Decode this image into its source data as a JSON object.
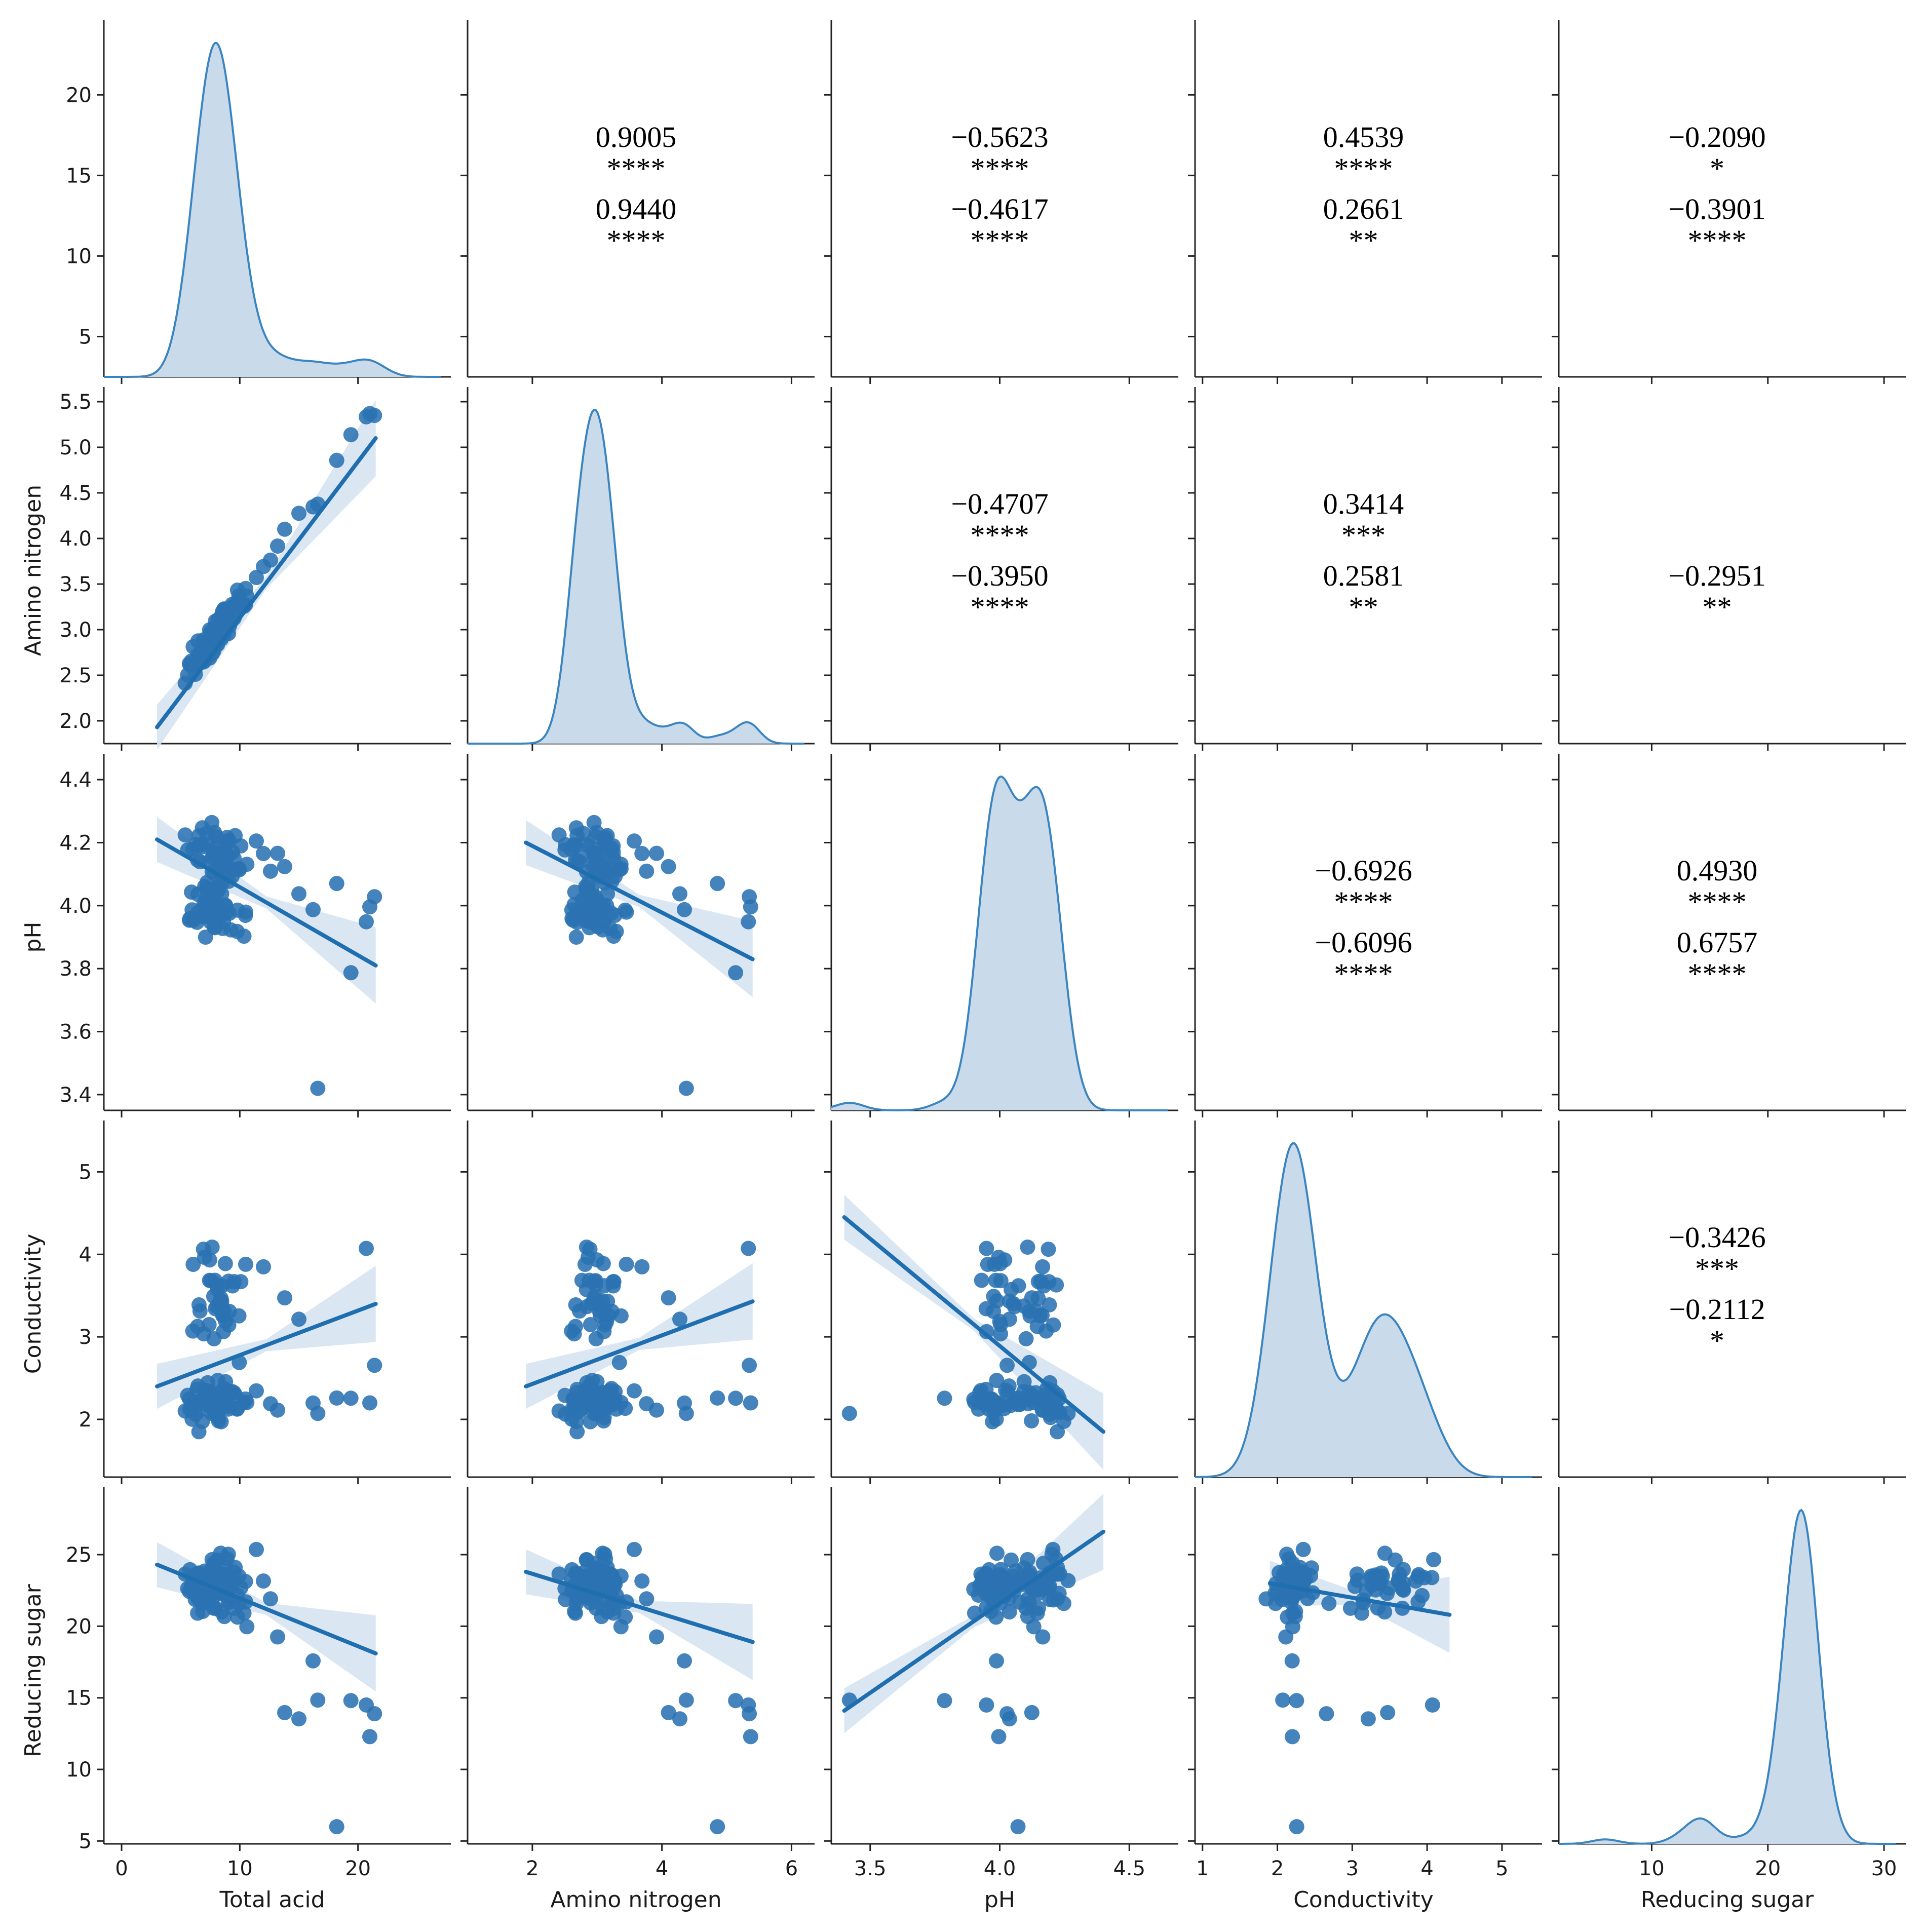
{
  "chart_data": {
    "type": "pairplot",
    "variables": [
      "Total acid",
      "Amino nitrogen",
      "pH",
      "Conductivity",
      "Reducing sugar"
    ],
    "axes": {
      "Total acid": {
        "range": [
          -1.5,
          27
        ],
        "ticks": [
          0,
          10,
          20
        ],
        "tick_labels": [
          "0",
          "10",
          "20"
        ]
      },
      "Amino nitrogen": {
        "range": [
          1.75,
          5.55
        ],
        "ticks": [
          2.0,
          2.5,
          3.0,
          3.5,
          4.0,
          4.5,
          5.0,
          5.5
        ],
        "tick_labels": [
          "2.0",
          "2.5",
          "3.0",
          "3.5",
          "4.0",
          "4.5",
          "5.0",
          "5.5"
        ],
        "x_ticks": [
          2,
          4,
          6
        ],
        "x_tick_labels": [
          "2",
          "4",
          "6"
        ],
        "x_range": [
          1.0,
          6.2
        ]
      },
      "pH": {
        "range": [
          3.35,
          4.45
        ],
        "ticks": [
          3.4,
          3.6,
          3.8,
          4.0,
          4.2,
          4.4
        ],
        "tick_labels": [
          "3.4",
          "3.6",
          "3.8",
          "4.0",
          "4.2",
          "4.4"
        ],
        "x_ticks": [
          3.5,
          4.0,
          4.5
        ],
        "x_tick_labels": [
          "3.5",
          "4.0",
          "4.5"
        ],
        "x_range": [
          3.35,
          4.65
        ]
      },
      "Conductivity": {
        "range": [
          1.3,
          5.5
        ],
        "ticks": [
          2,
          3,
          4,
          5
        ],
        "tick_labels": [
          "2",
          "3",
          "4",
          "5"
        ],
        "x_ticks": [
          1,
          2,
          3,
          4,
          5
        ],
        "x_tick_labels": [
          "1",
          "2",
          "3",
          "4",
          "5"
        ],
        "x_range": [
          0.9,
          5.4
        ]
      },
      "Reducing sugar": {
        "range": [
          4.8,
          29
        ],
        "ticks": [
          5,
          10,
          15,
          20,
          25
        ],
        "tick_labels": [
          "5",
          "10",
          "15",
          "20",
          "25"
        ],
        "x_ticks": [
          10,
          20,
          30
        ],
        "x_tick_labels": [
          "10",
          "20",
          "30"
        ],
        "x_range": [
          2,
          31
        ]
      }
    },
    "diag_y_axis": {
      "ticks": [
        5,
        10,
        15,
        20
      ],
      "tick_labels": [
        "5",
        "10",
        "15",
        "20"
      ],
      "range": [
        2.5,
        24
      ]
    },
    "regression_lines": [
      {
        "x_var": "Total acid",
        "y_var": "Amino nitrogen",
        "x": [
          3,
          21.5
        ],
        "y": [
          1.93,
          5.1
        ]
      },
      {
        "x_var": "Total acid",
        "y_var": "pH",
        "x": [
          3,
          21.5
        ],
        "y": [
          4.21,
          3.81
        ]
      },
      {
        "x_var": "Amino nitrogen",
        "y_var": "pH",
        "x": [
          1.9,
          5.4
        ],
        "y": [
          4.2,
          3.83
        ]
      },
      {
        "x_var": "Total acid",
        "y_var": "Conductivity",
        "x": [
          3,
          21.5
        ],
        "y": [
          2.4,
          3.4
        ]
      },
      {
        "x_var": "Amino nitrogen",
        "y_var": "Conductivity",
        "x": [
          1.9,
          5.4
        ],
        "y": [
          2.4,
          3.43
        ]
      },
      {
        "x_var": "pH",
        "y_var": "Conductivity",
        "x": [
          3.4,
          4.4
        ],
        "y": [
          4.45,
          1.85
        ]
      },
      {
        "x_var": "Total acid",
        "y_var": "Reducing sugar",
        "x": [
          3,
          21.5
        ],
        "y": [
          24.3,
          18.1
        ]
      },
      {
        "x_var": "Amino nitrogen",
        "y_var": "Reducing sugar",
        "x": [
          1.9,
          5.4
        ],
        "y": [
          23.8,
          18.9
        ]
      },
      {
        "x_var": "pH",
        "y_var": "Reducing sugar",
        "x": [
          3.4,
          4.4
        ],
        "y": [
          14.1,
          26.6
        ]
      },
      {
        "x_var": "Conductivity",
        "y_var": "Reducing sugar",
        "x": [
          1.9,
          4.3
        ],
        "y": [
          23.0,
          20.8
        ]
      }
    ],
    "kde_peaks": [
      {
        "variable": "Total acid",
        "peak_x": 8.3
      },
      {
        "variable": "Amino nitrogen",
        "peak_x": 2.8
      },
      {
        "variable": "pH",
        "peak_x": [
          4.0,
          4.15
        ]
      },
      {
        "variable": "Conductivity",
        "peak_x": 2.25
      },
      {
        "variable": "Reducing sugar",
        "peak_x": 22.8
      }
    ],
    "correlations": [
      {
        "row": 0,
        "col": 1,
        "r1": "0.9005",
        "s1": "****",
        "r2": "0.9440",
        "s2": "****"
      },
      {
        "row": 0,
        "col": 2,
        "r1": "−0.5623",
        "s1": "****",
        "r2": "−0.4617",
        "s2": "****"
      },
      {
        "row": 0,
        "col": 3,
        "r1": "0.4539",
        "s1": "****",
        "r2": "0.2661",
        "s2": "**"
      },
      {
        "row": 0,
        "col": 4,
        "r1": "−0.2090",
        "s1": "*",
        "r2": "−0.3901",
        "s2": "****"
      },
      {
        "row": 1,
        "col": 2,
        "r1": "−0.4707",
        "s1": "****",
        "r2": "−0.3950",
        "s2": "****"
      },
      {
        "row": 1,
        "col": 3,
        "r1": "0.3414",
        "s1": "***",
        "r2": "0.2581",
        "s2": "**"
      },
      {
        "row": 1,
        "col": 4,
        "r1": "",
        "s1": "",
        "r2": "−0.2951",
        "s2": "**"
      },
      {
        "row": 2,
        "col": 3,
        "r1": "−0.6926",
        "s1": "****",
        "r2": "−0.6096",
        "s2": "****"
      },
      {
        "row": 2,
        "col": 4,
        "r1": "0.4930",
        "s1": "****",
        "r2": "0.6757",
        "s2": "****"
      },
      {
        "row": 3,
        "col": 4,
        "r1": "−0.3426",
        "s1": "***",
        "r2": "−0.2112",
        "s2": "*"
      }
    ],
    "colors": {
      "points": "#2a72b2",
      "line": "#1f6eb0",
      "kde_fill": "#c9dbeb",
      "kde_line": "#3a84c0",
      "band": "#d6e4f2"
    }
  }
}
